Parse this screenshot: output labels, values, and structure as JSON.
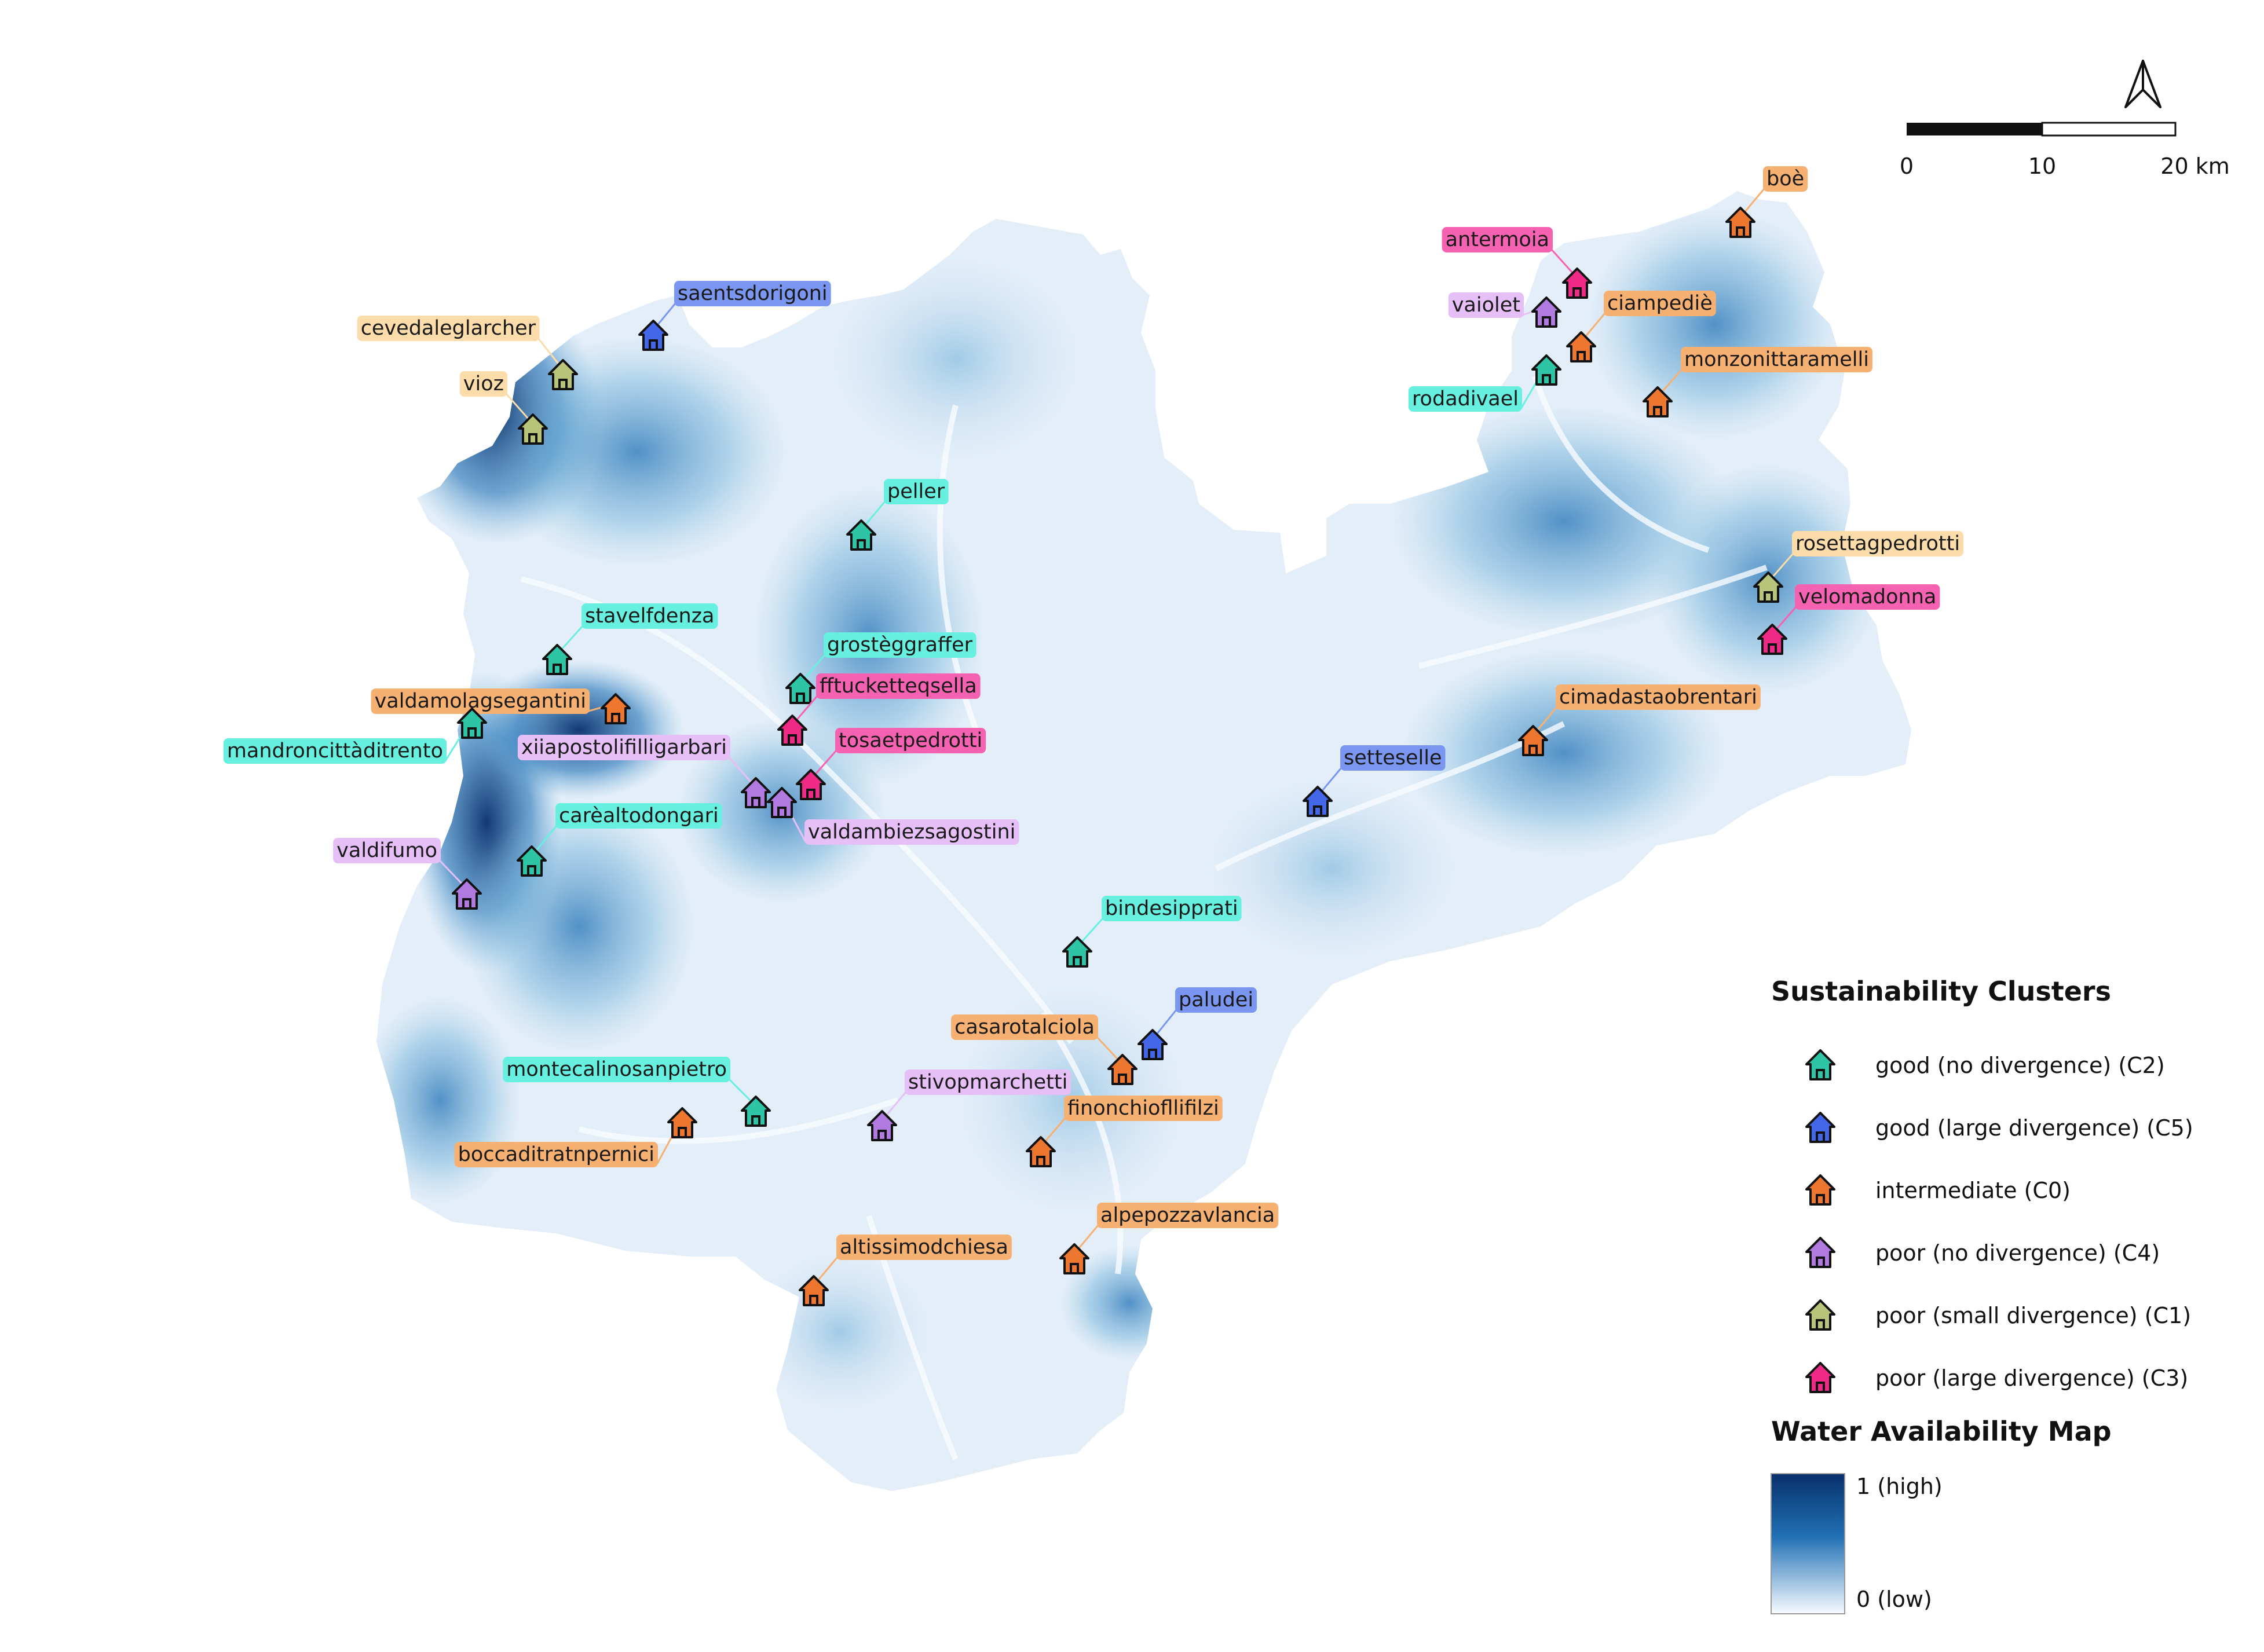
{
  "colors": {
    "C2": "#2ec4a6",
    "C5": "#4466e8",
    "C0": "#ee7730",
    "C4": "#b07ae0",
    "C1": "#b8c47a",
    "C3": "#ee2a86"
  },
  "label_bg": {
    "C2": "#67f0e0",
    "C5": "#7a96f0",
    "C0": "#f6b072",
    "C4": "#e6bff6",
    "C1": "#fbdcaa",
    "C3": "#f662b2"
  },
  "huts": [
    {
      "name": "saentsdorigoni",
      "cluster": "C5"
    },
    {
      "name": "cevedaleglarcher",
      "cluster": "C1"
    },
    {
      "name": "vioz",
      "cluster": "C1"
    },
    {
      "name": "peller",
      "cluster": "C2"
    },
    {
      "name": "stavelfdenza",
      "cluster": "C2"
    },
    {
      "name": "grostèggraffer",
      "cluster": "C2"
    },
    {
      "name": "fftucketteqsella",
      "cluster": "C3"
    },
    {
      "name": "valdamolagsegantini",
      "cluster": "C0"
    },
    {
      "name": "mandroncittàditrento",
      "cluster": "C2"
    },
    {
      "name": "tosaetpedrotti",
      "cluster": "C3"
    },
    {
      "name": "xiiapostolifilligarbari",
      "cluster": "C4"
    },
    {
      "name": "valdambiezsagostini",
      "cluster": "C4"
    },
    {
      "name": "carèaltodongari",
      "cluster": "C2"
    },
    {
      "name": "valdifumo",
      "cluster": "C4"
    },
    {
      "name": "bindesipprati",
      "cluster": "C2"
    },
    {
      "name": "paludei",
      "cluster": "C5"
    },
    {
      "name": "casarotalciola",
      "cluster": "C0"
    },
    {
      "name": "montecalinosanpietro",
      "cluster": "C2"
    },
    {
      "name": "boccaditratnpernici",
      "cluster": "C0"
    },
    {
      "name": "stivopmarchetti",
      "cluster": "C4"
    },
    {
      "name": "finonchiofllifilzi",
      "cluster": "C0"
    },
    {
      "name": "alpepozzavlancia",
      "cluster": "C0"
    },
    {
      "name": "altissimodchiesa",
      "cluster": "C0"
    },
    {
      "name": "setteselle",
      "cluster": "C5"
    },
    {
      "name": "cimadastaobrentari",
      "cluster": "C0"
    },
    {
      "name": "rosettagpedrotti",
      "cluster": "C1"
    },
    {
      "name": "velomadonna",
      "cluster": "C3"
    },
    {
      "name": "boè",
      "cluster": "C0"
    },
    {
      "name": "antermoia",
      "cluster": "C3"
    },
    {
      "name": "vaiolet",
      "cluster": "C4"
    },
    {
      "name": "ciampediè",
      "cluster": "C0"
    },
    {
      "name": "rodadivael",
      "cluster": "C2"
    },
    {
      "name": "monzonittaramelli",
      "cluster": "C0"
    }
  ],
  "legend": {
    "clusters_title": "Sustainability Clusters",
    "clusters": [
      {
        "label": "good (no divergence) (C2)",
        "cluster": "C2"
      },
      {
        "label": "good (large divergence) (C5)",
        "cluster": "C5"
      },
      {
        "label": "intermediate (C0)",
        "cluster": "C0"
      },
      {
        "label": "poor (no divergence) (C4)",
        "cluster": "C4"
      },
      {
        "label": "poor (small divergence) (C1)",
        "cluster": "C1"
      },
      {
        "label": "poor (large divergence) (C3)",
        "cluster": "C3"
      }
    ],
    "water_title": "Water Availability Map",
    "water_high": "1 (high)",
    "water_low": "0 (low)",
    "water_color_high": "#08306b",
    "water_color_mid": "#2171b5",
    "water_color_low": "#f7fbff"
  },
  "scalebar": {
    "labels": [
      "0",
      "10",
      "20 km"
    ]
  },
  "north_arrow_icon": "north-arrow-icon"
}
